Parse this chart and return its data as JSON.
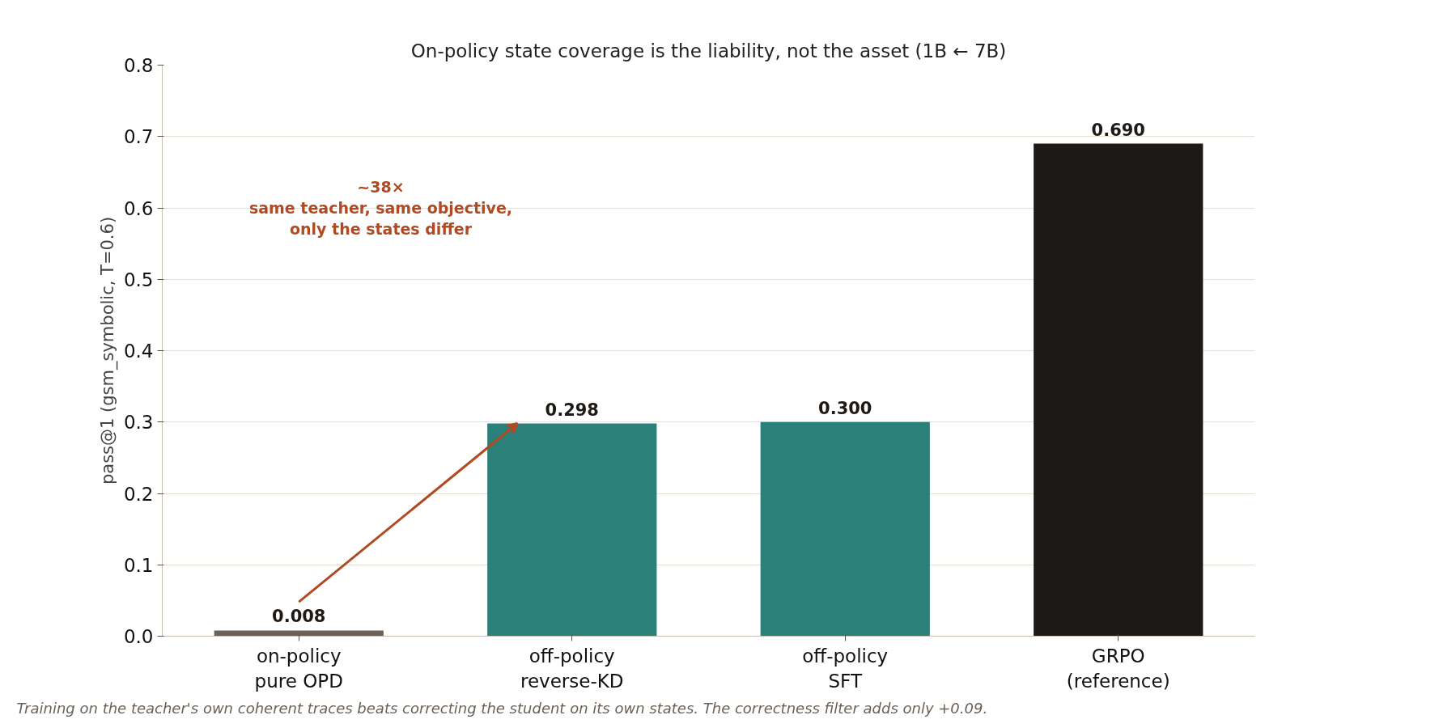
{
  "chart_data": {
    "type": "bar",
    "title": "On-policy state coverage is the liability, not the asset (1B ← 7B)",
    "ylabel": "pass@1 (gsm_symbolic, T=0.6)",
    "categories": [
      "on-policy\npure OPD",
      "off-policy\nreverse-KD",
      "off-policy\nSFT",
      "GRPO\n(reference)"
    ],
    "values": [
      0.008,
      0.298,
      0.3,
      0.69
    ],
    "value_labels": [
      "0.008",
      "0.298",
      "0.300",
      "0.690"
    ],
    "colors": [
      "#6b6157",
      "#2b807a",
      "#2b807a",
      "#1c1916"
    ],
    "ylim": [
      0,
      0.8
    ],
    "yticks": [
      {
        "value": 0,
        "label": "0.0"
      },
      0.1,
      0.2,
      0.3,
      0.4,
      0.5,
      0.6,
      0.7,
      0.8
    ],
    "grid": "y",
    "annotations": [
      "~38×\nsame teacher, same objective,\nonly the states differ",
      "Training on the teacher's own coherent traces beats correcting the student on its own states. The correctness filter adds only +0.09."
    ]
  }
}
